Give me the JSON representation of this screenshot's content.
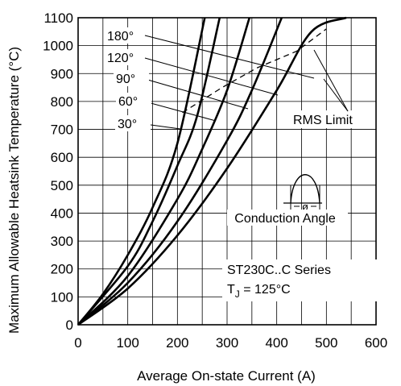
{
  "chart_data": {
    "type": "line",
    "xlabel": "Average On-state Current (A)",
    "ylabel": "Maximum Allowable Heatsink Temperature (°C)",
    "xlim": [
      0,
      600
    ],
    "ylim": [
      0,
      1100
    ],
    "x_ticks": [
      "0",
      "100",
      "200",
      "300",
      "400",
      "500",
      "600"
    ],
    "y_ticks": [
      "0",
      "100",
      "200",
      "300",
      "400",
      "500",
      "600",
      "700",
      "800",
      "900",
      "1000",
      "1100"
    ],
    "grid": true,
    "series": [
      {
        "name": "180°",
        "x": [
          0,
          100,
          200,
          300,
          400,
          470,
          540
        ],
        "y": [
          0,
          130,
          320,
          560,
          840,
          1050,
          1100
        ]
      },
      {
        "name": "120°",
        "x": [
          0,
          100,
          200,
          300,
          350,
          410
        ],
        "y": [
          0,
          150,
          370,
          660,
          840,
          1100
        ]
      },
      {
        "name": "90°",
        "x": [
          0,
          100,
          200,
          250,
          300,
          345
        ],
        "y": [
          0,
          175,
          450,
          630,
          840,
          1100
        ]
      },
      {
        "name": "60°",
        "x": [
          0,
          100,
          150,
          200,
          240,
          285
        ],
        "y": [
          0,
          210,
          370,
          570,
          750,
          1100
        ]
      },
      {
        "name": "30°",
        "x": [
          0,
          50,
          100,
          150,
          200,
          255
        ],
        "y": [
          0,
          110,
          250,
          420,
          650,
          1100
        ]
      }
    ],
    "rms_limit": {
      "label": "RMS Limit",
      "x": [
        210,
        290,
        360,
        440,
        500
      ],
      "y": [
        760,
        850,
        920,
        980,
        1060
      ]
    },
    "annotations": {
      "conduction_angle_label": "Conduction Angle",
      "phi_symbol": "ø",
      "series_name": "ST230C..C Series",
      "tj_prefix": "T",
      "tj_sub": "J",
      "tj_value": " = 125°C"
    }
  }
}
